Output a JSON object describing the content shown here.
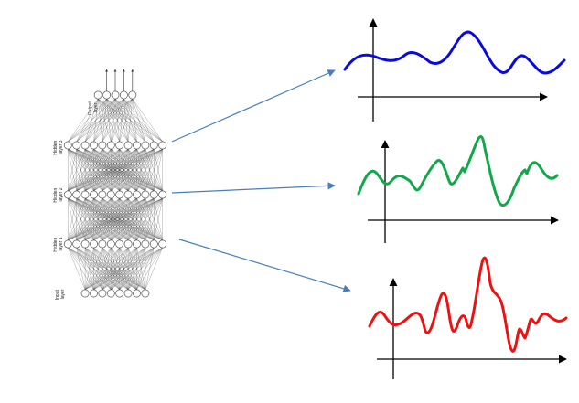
{
  "network": {
    "layers": [
      {
        "label_line1": "Output",
        "label_line2": "layer",
        "nodes": 5
      },
      {
        "label_line1": "Hidden",
        "label_line2": "layer 3",
        "nodes": 12
      },
      {
        "label_line1": "Hidden",
        "label_line2": "layer 2",
        "nodes": 12
      },
      {
        "label_line1": "Hidden",
        "label_line2": "layer 1",
        "nodes": 12
      },
      {
        "label_line1": "Input",
        "label_line2": "layer",
        "nodes": 8
      }
    ]
  },
  "signals": [
    {
      "name": "signal-blue",
      "color": "#0A0ADC"
    },
    {
      "name": "signal-green",
      "color": "#12A84A"
    },
    {
      "name": "signal-red",
      "color": "#EE1111"
    }
  ],
  "colors": {
    "connector_arrow": "#4A7EBB",
    "axis": "#000000",
    "node_stroke": "#555555",
    "edge": "#333333"
  }
}
